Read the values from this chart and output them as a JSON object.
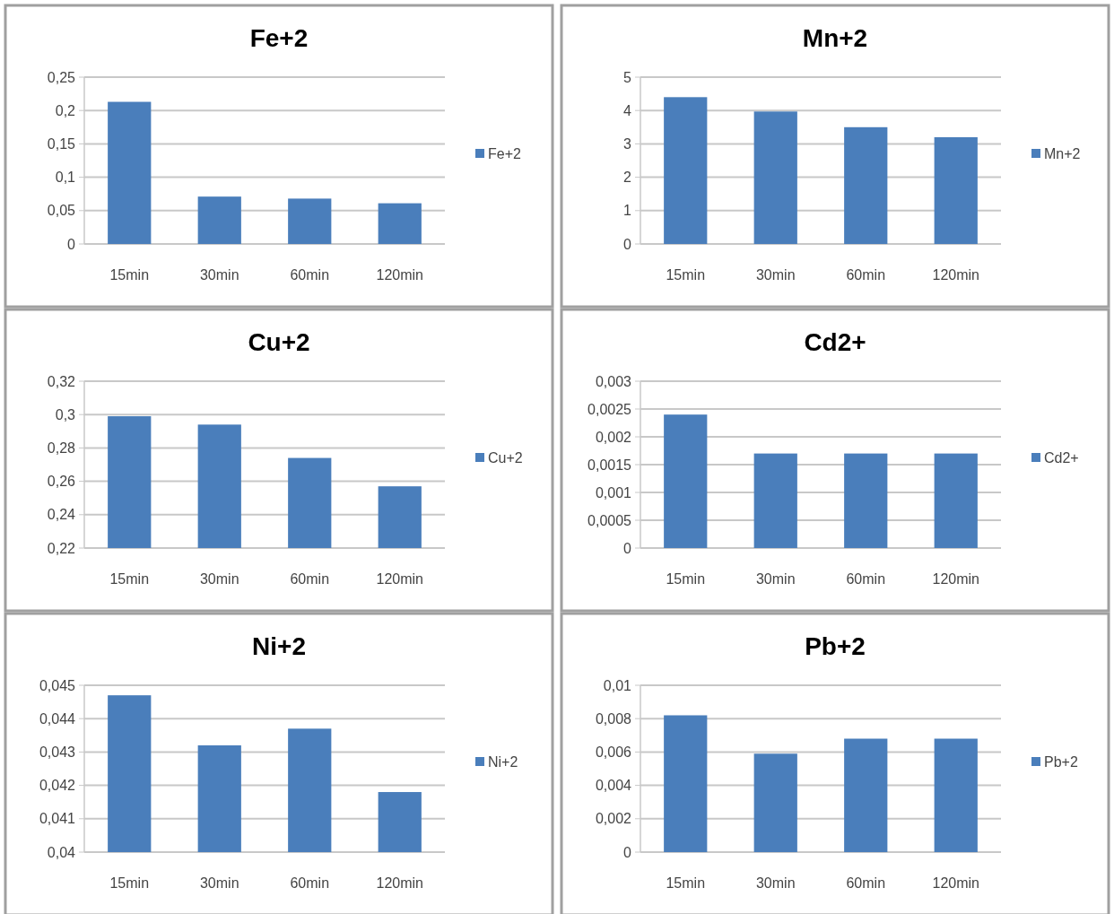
{
  "chart_data": [
    {
      "type": "bar",
      "title": "Fe+2",
      "categories": [
        "15min",
        "30min",
        "60min",
        "120min"
      ],
      "series": [
        {
          "name": "Fe+2",
          "color": "#4a7ebb",
          "values": [
            0.213,
            0.071,
            0.068,
            0.061
          ]
        }
      ],
      "ylim": [
        0,
        0.25
      ],
      "yticks": [
        0,
        {
          "value": 0.05,
          "label": "0,05"
        },
        {
          "value": 0.1,
          "label": "0,1"
        },
        {
          "value": 0.15,
          "label": "0,15"
        },
        {
          "value": 0.2,
          "label": "0,2"
        },
        {
          "value": 0.25,
          "label": "0,25"
        }
      ],
      "grid": "y",
      "legend": "right"
    },
    {
      "type": "bar",
      "title": "Mn+2",
      "categories": [
        "15min",
        "30min",
        "60min",
        "120min"
      ],
      "series": [
        {
          "name": "Mn+2",
          "color": "#4a7ebb",
          "values": [
            4.4,
            3.97,
            3.5,
            3.2
          ]
        }
      ],
      "ylim": [
        0,
        5
      ],
      "yticks": [
        0,
        1,
        2,
        3,
        4,
        5
      ],
      "grid": "y",
      "legend": "right"
    },
    {
      "type": "bar",
      "title": "Cu+2",
      "categories": [
        "15min",
        "30min",
        "60min",
        "120min"
      ],
      "series": [
        {
          "name": "Cu+2",
          "color": "#4a7ebb",
          "values": [
            0.299,
            0.294,
            0.274,
            0.257
          ]
        }
      ],
      "ylim": [
        0.22,
        0.32
      ],
      "yticks": [
        {
          "value": 0.22,
          "label": "0,22"
        },
        {
          "value": 0.24,
          "label": "0,24"
        },
        {
          "value": 0.26,
          "label": "0,26"
        },
        {
          "value": 0.28,
          "label": "0,28"
        },
        {
          "value": 0.3,
          "label": "0,3"
        },
        {
          "value": 0.32,
          "label": "0,32"
        }
      ],
      "grid": "y",
      "legend": "right"
    },
    {
      "type": "bar",
      "title": "Cd2+",
      "categories": [
        "15min",
        "30min",
        "60min",
        "120min"
      ],
      "series": [
        {
          "name": "Cd2+",
          "color": "#4a7ebb",
          "values": [
            0.0024,
            0.0017,
            0.0017,
            0.0017
          ]
        }
      ],
      "ylim": [
        0,
        0.003
      ],
      "yticks": [
        0,
        {
          "value": 0.0005,
          "label": "0,0005"
        },
        {
          "value": 0.001,
          "label": "0,001"
        },
        {
          "value": 0.0015,
          "label": "0,0015"
        },
        {
          "value": 0.002,
          "label": "0,002"
        },
        {
          "value": 0.0025,
          "label": "0,0025"
        },
        {
          "value": 0.003,
          "label": "0,003"
        }
      ],
      "grid": "y",
      "legend": "right"
    },
    {
      "type": "bar",
      "title": "Ni+2",
      "categories": [
        "15min",
        "30min",
        "60min",
        "120min"
      ],
      "series": [
        {
          "name": "Ni+2",
          "color": "#4a7ebb",
          "values": [
            0.0447,
            0.0432,
            0.0437,
            0.0418
          ]
        }
      ],
      "ylim": [
        0.04,
        0.045
      ],
      "yticks": [
        {
          "value": 0.04,
          "label": "0,04"
        },
        {
          "value": 0.041,
          "label": "0,041"
        },
        {
          "value": 0.042,
          "label": "0,042"
        },
        {
          "value": 0.043,
          "label": "0,043"
        },
        {
          "value": 0.044,
          "label": "0,044"
        },
        {
          "value": 0.045,
          "label": "0,045"
        }
      ],
      "grid": "y",
      "legend": "right"
    },
    {
      "type": "bar",
      "title": "Pb+2",
      "categories": [
        "15min",
        "30min",
        "60min",
        "120min"
      ],
      "series": [
        {
          "name": "Pb+2",
          "color": "#4a7ebb",
          "values": [
            0.0082,
            0.0059,
            0.0068,
            0.0068
          ]
        }
      ],
      "ylim": [
        0,
        0.01
      ],
      "yticks": [
        0,
        {
          "value": 0.002,
          "label": "0,002"
        },
        {
          "value": 0.004,
          "label": "0,004"
        },
        {
          "value": 0.006,
          "label": "0,006"
        },
        {
          "value": 0.008,
          "label": "0,008"
        },
        {
          "value": 0.01,
          "label": "0,01"
        }
      ],
      "grid": "y",
      "legend": "right"
    }
  ]
}
